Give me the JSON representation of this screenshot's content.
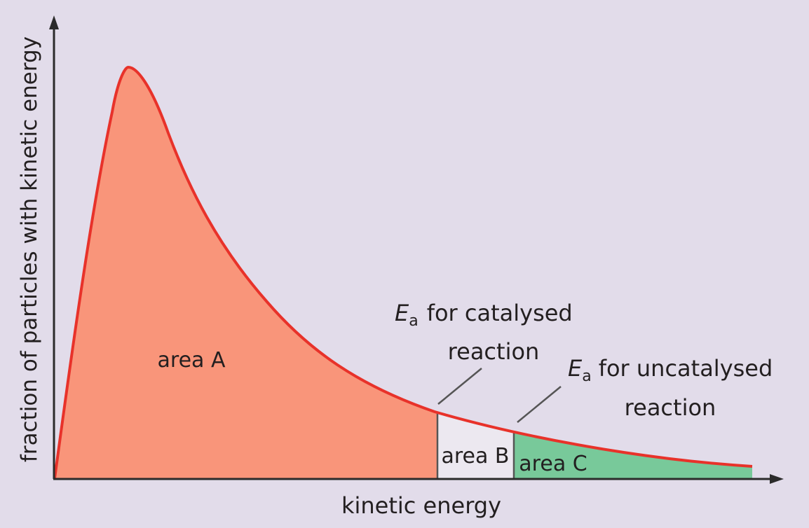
{
  "diagram": {
    "y_axis_label": "fraction of particles with kinetic energy",
    "x_axis_label": "kinetic energy",
    "areas": {
      "a": "area A",
      "b": "area B",
      "c": "area C"
    },
    "ea_catalysed": {
      "symbol": "E",
      "subscript": "a",
      "line1": "for catalysed",
      "line2": "reaction"
    },
    "ea_uncatalysed": {
      "symbol": "E",
      "subscript": "a",
      "line1": "for uncatalysed",
      "line2": "reaction"
    }
  },
  "colors": {
    "background": "#e2dcea",
    "curve": "#e8322a",
    "area_a": "#f9957a",
    "area_b": "#ece8f0",
    "area_c": "#78c99a",
    "axis": "#2b2b2b"
  }
}
